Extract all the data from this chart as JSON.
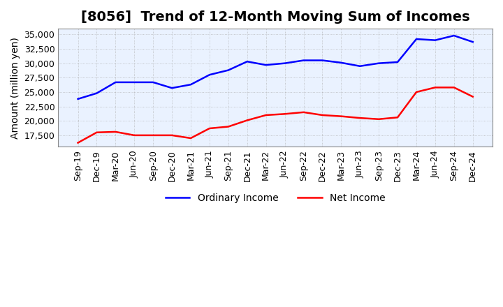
{
  "title": "[8056]  Trend of 12-Month Moving Sum of Incomes",
  "ylabel": "Amount (million yen)",
  "ylim": [
    15500,
    36000
  ],
  "yticks": [
    17500,
    20000,
    22500,
    25000,
    27500,
    30000,
    32500,
    35000
  ],
  "x_labels": [
    "Sep-19",
    "Dec-19",
    "Mar-20",
    "Jun-20",
    "Sep-20",
    "Dec-20",
    "Mar-21",
    "Jun-21",
    "Sep-21",
    "Dec-21",
    "Mar-22",
    "Jun-22",
    "Sep-22",
    "Dec-22",
    "Mar-23",
    "Jun-23",
    "Sep-23",
    "Dec-23",
    "Mar-24",
    "Jun-24",
    "Sep-24",
    "Dec-24"
  ],
  "ordinary_income": [
    23800,
    24800,
    26700,
    26700,
    26700,
    25700,
    26300,
    28000,
    28800,
    30300,
    29700,
    30000,
    30500,
    30500,
    30100,
    29500,
    30000,
    30200,
    34200,
    34000,
    34800,
    33700
  ],
  "net_income": [
    16200,
    18000,
    18100,
    17500,
    17500,
    17500,
    17000,
    18700,
    19000,
    20100,
    21000,
    21200,
    21500,
    21000,
    20800,
    20500,
    20300,
    20600,
    25000,
    25800,
    25800,
    24200
  ],
  "ordinary_color": "#0000FF",
  "net_color": "#FF0000",
  "background_color": "#FFFFFF",
  "plot_bg_color": "#EAF2FF",
  "grid_color": "#AAAAAA",
  "title_fontsize": 14,
  "label_fontsize": 10,
  "tick_fontsize": 9,
  "legend_fontsize": 10
}
